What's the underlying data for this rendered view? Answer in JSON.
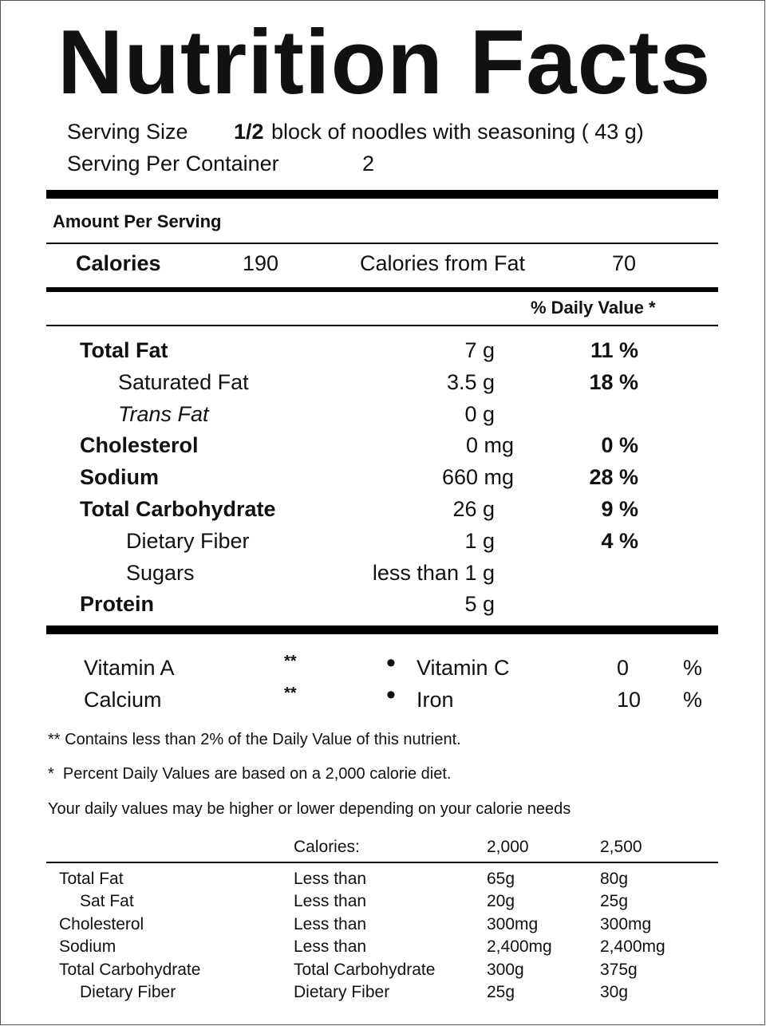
{
  "title": "Nutrition Facts",
  "serving": {
    "size_label": "Serving Size",
    "size_amount": "1/2",
    "size_desc": "block of noodles with seasoning ( 43 g)",
    "per_container_label": "Serving Per Container",
    "per_container_value": "2"
  },
  "amount_per_serving": "Amount Per Serving",
  "calories": {
    "label": "Calories",
    "value": "190",
    "from_fat_label": "Calories from Fat",
    "from_fat_value": "70"
  },
  "daily_value_header": "% Daily Value *",
  "nutrients": [
    {
      "name": "Total Fat",
      "amount": "7 g",
      "dv": "11 %"
    },
    {
      "name": "Saturated Fat",
      "amount": "3.5 g",
      "dv": "18 %"
    },
    {
      "name": "Trans Fat",
      "amount": "0 g",
      "dv": ""
    },
    {
      "name": "Cholesterol",
      "amount": "0 mg",
      "dv": "0 %"
    },
    {
      "name": "Sodium",
      "amount": "660 mg",
      "dv": "28 %"
    },
    {
      "name": "Total Carbohydrate",
      "amount": "26 g",
      "dv": "9 %"
    },
    {
      "name": "Dietary Fiber",
      "amount": "1 g",
      "dv": "4 %"
    },
    {
      "name": "Sugars",
      "amount": "less than 1 g",
      "dv": ""
    },
    {
      "name": "Protein",
      "amount": "5 g",
      "dv": ""
    }
  ],
  "vitamins": [
    {
      "left_name": "Vitamin A",
      "left_value": "**",
      "bullet": "•",
      "right_name": "Vitamin C",
      "right_value": "0",
      "unit": "%"
    },
    {
      "left_name": "Calcium",
      "left_value": "**",
      "bullet": "•",
      "right_name": "Iron",
      "right_value": "10",
      "unit": "%"
    }
  ],
  "footnotes": [
    "** Contains less than 2% of the Daily Value of this nutrient.",
    "*  Percent Daily Values are based on a 2,000 calorie diet.",
    "Your daily values may be higher or lower depending on your calorie needs"
  ],
  "reference_table": {
    "header": [
      "",
      "Calories:",
      "2,000",
      "2,500"
    ],
    "rows": [
      [
        "Total Fat",
        "Less than",
        "65g",
        "80g"
      ],
      [
        "Sat Fat",
        "Less than",
        "20g",
        "25g"
      ],
      [
        "Cholesterol",
        "Less than",
        "300mg",
        "300mg"
      ],
      [
        "Sodium",
        "Less than",
        "2,400mg",
        "2,400mg"
      ],
      [
        "Total Carbohydrate",
        "Total Carbohydrate",
        "300g",
        "375g"
      ],
      [
        "Dietary Fiber",
        "Dietary Fiber",
        "25g",
        "30g"
      ]
    ]
  }
}
